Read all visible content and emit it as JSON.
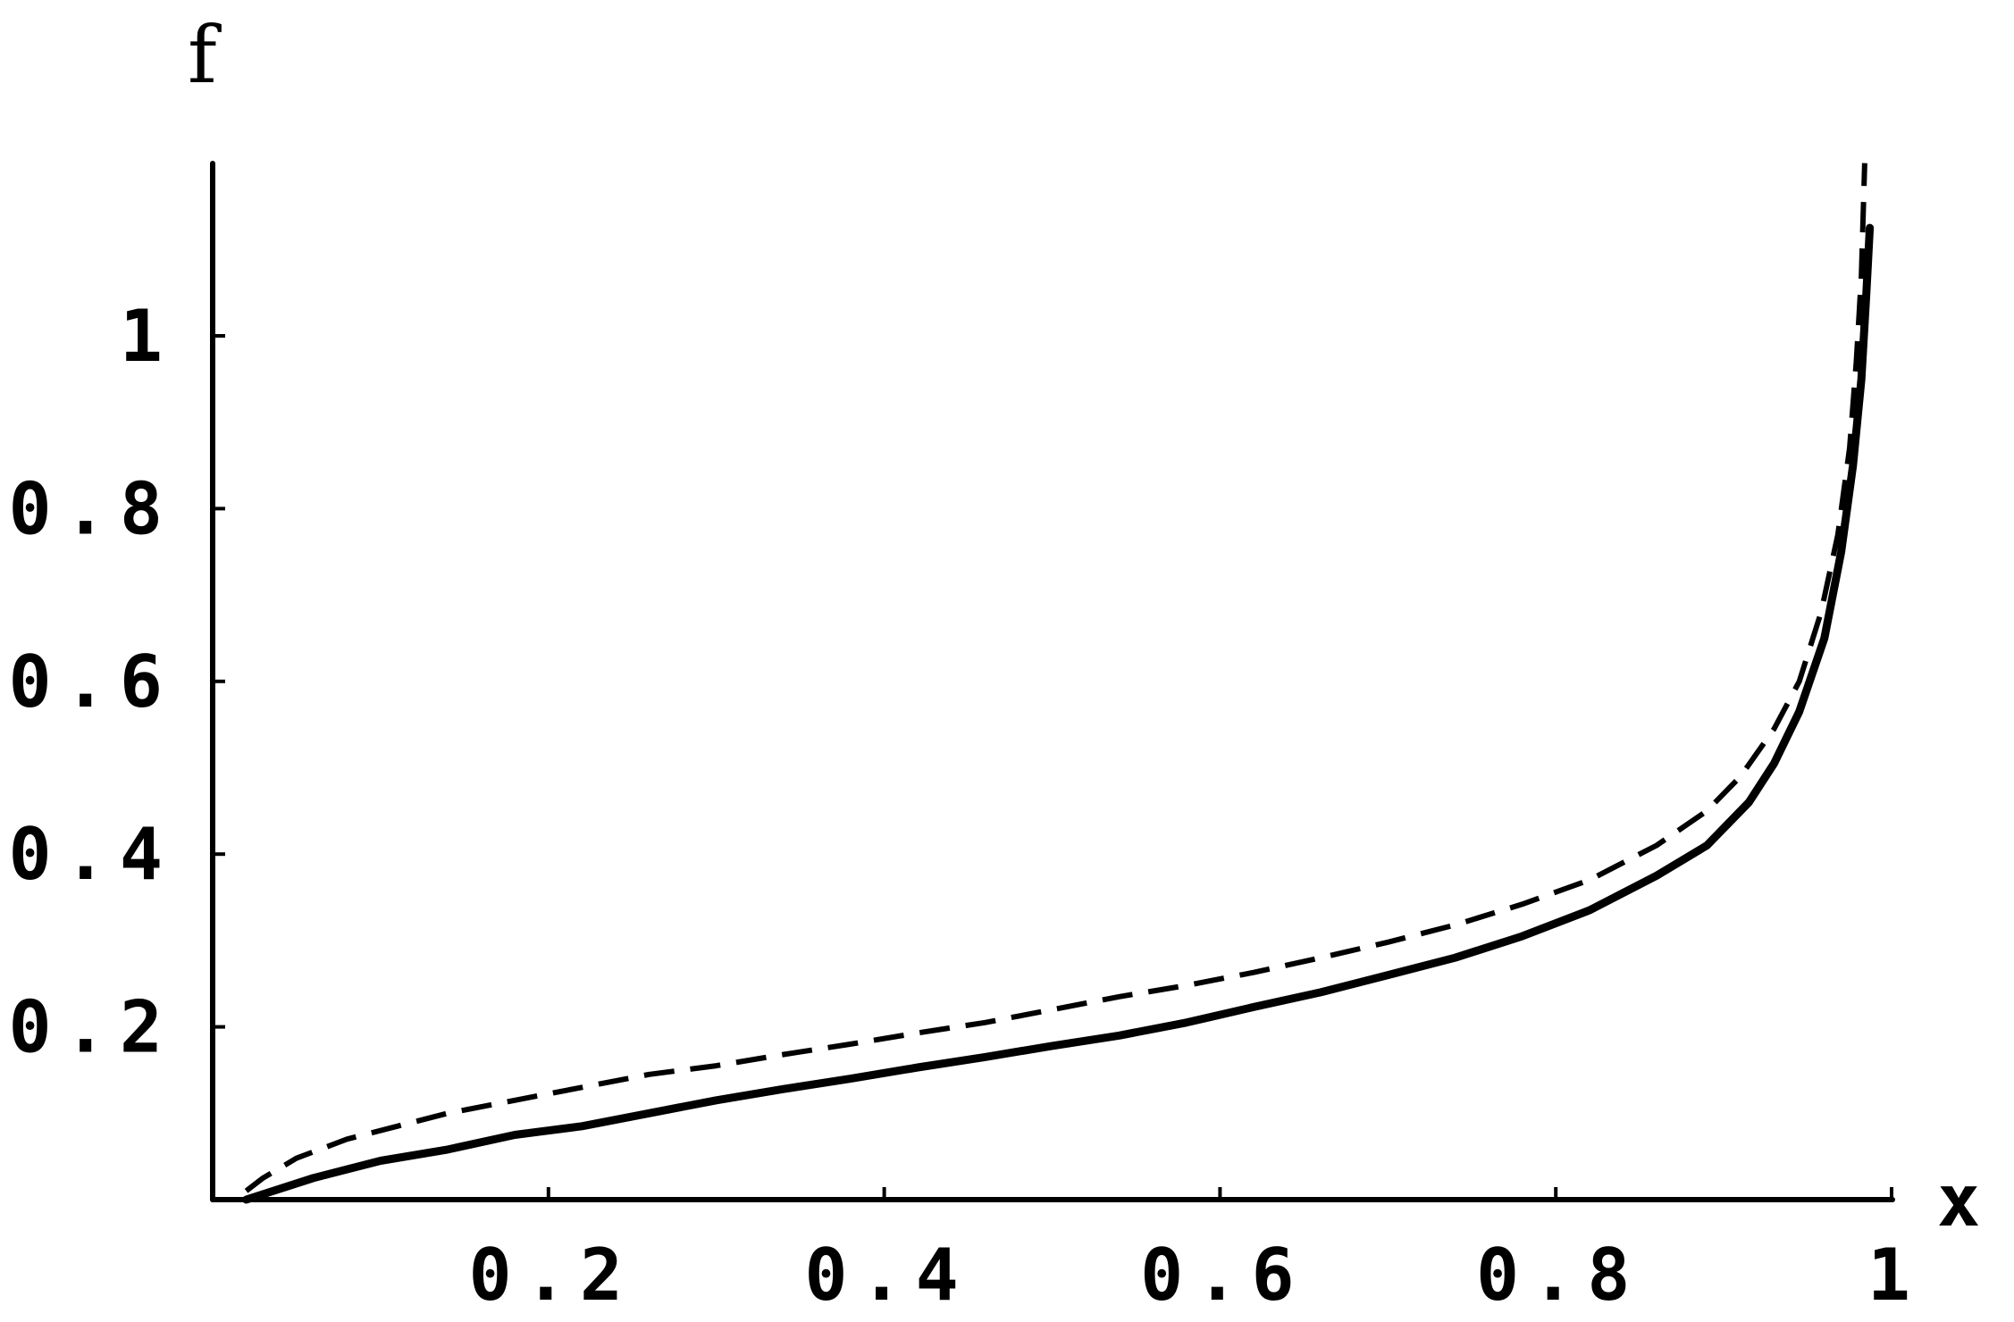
{
  "chart_data": {
    "type": "line",
    "xlabel": "x",
    "ylabel": "f",
    "xlim": [
      0,
      1
    ],
    "ylim": [
      0,
      1.2
    ],
    "x_ticks": [
      {
        "value": 0.2,
        "label": "0.2"
      },
      {
        "value": 0.4,
        "label": "0.4"
      },
      {
        "value": 0.6,
        "label": "0.6"
      },
      {
        "value": 0.8,
        "label": "0.8"
      },
      {
        "value": 1.0,
        "label": "1"
      }
    ],
    "y_ticks": [
      {
        "value": 0.2,
        "label": "0.2"
      },
      {
        "value": 0.4,
        "label": "0.4"
      },
      {
        "value": 0.6,
        "label": "0.6"
      },
      {
        "value": 0.8,
        "label": "0.8"
      },
      {
        "value": 1.0,
        "label": "1"
      }
    ],
    "grid": false,
    "series": [
      {
        "style": "solid",
        "color": "#000000",
        "points": [
          [
            0.02,
            0.0
          ],
          [
            0.06,
            0.025
          ],
          [
            0.1,
            0.045
          ],
          [
            0.14,
            0.058
          ],
          [
            0.18,
            0.075
          ],
          [
            0.22,
            0.085
          ],
          [
            0.26,
            0.1
          ],
          [
            0.3,
            0.115
          ],
          [
            0.34,
            0.128
          ],
          [
            0.38,
            0.14
          ],
          [
            0.42,
            0.153
          ],
          [
            0.46,
            0.165
          ],
          [
            0.5,
            0.178
          ],
          [
            0.54,
            0.19
          ],
          [
            0.58,
            0.205
          ],
          [
            0.62,
            0.223
          ],
          [
            0.66,
            0.24
          ],
          [
            0.7,
            0.26
          ],
          [
            0.74,
            0.28
          ],
          [
            0.78,
            0.305
          ],
          [
            0.82,
            0.335
          ],
          [
            0.86,
            0.375
          ],
          [
            0.89,
            0.41
          ],
          [
            0.915,
            0.46
          ],
          [
            0.93,
            0.505
          ],
          [
            0.945,
            0.565
          ],
          [
            0.96,
            0.65
          ],
          [
            0.97,
            0.75
          ],
          [
            0.977,
            0.85
          ],
          [
            0.982,
            0.95
          ],
          [
            0.985,
            1.05
          ],
          [
            0.987,
            1.125
          ]
        ]
      },
      {
        "style": "dashed",
        "color": "#000000",
        "points": [
          [
            0.02,
            0.01
          ],
          [
            0.03,
            0.025
          ],
          [
            0.05,
            0.048
          ],
          [
            0.08,
            0.07
          ],
          [
            0.11,
            0.085
          ],
          [
            0.14,
            0.1
          ],
          [
            0.18,
            0.115
          ],
          [
            0.22,
            0.13
          ],
          [
            0.26,
            0.145
          ],
          [
            0.3,
            0.155
          ],
          [
            0.34,
            0.168
          ],
          [
            0.38,
            0.18
          ],
          [
            0.42,
            0.193
          ],
          [
            0.46,
            0.205
          ],
          [
            0.5,
            0.22
          ],
          [
            0.54,
            0.235
          ],
          [
            0.58,
            0.248
          ],
          [
            0.62,
            0.263
          ],
          [
            0.66,
            0.28
          ],
          [
            0.7,
            0.298
          ],
          [
            0.74,
            0.318
          ],
          [
            0.78,
            0.342
          ],
          [
            0.82,
            0.37
          ],
          [
            0.86,
            0.41
          ],
          [
            0.89,
            0.45
          ],
          [
            0.91,
            0.49
          ],
          [
            0.93,
            0.545
          ],
          [
            0.945,
            0.6
          ],
          [
            0.958,
            0.68
          ],
          [
            0.968,
            0.77
          ],
          [
            0.975,
            0.87
          ],
          [
            0.979,
            0.97
          ],
          [
            0.982,
            1.07
          ],
          [
            0.984,
            1.2
          ]
        ]
      }
    ]
  }
}
